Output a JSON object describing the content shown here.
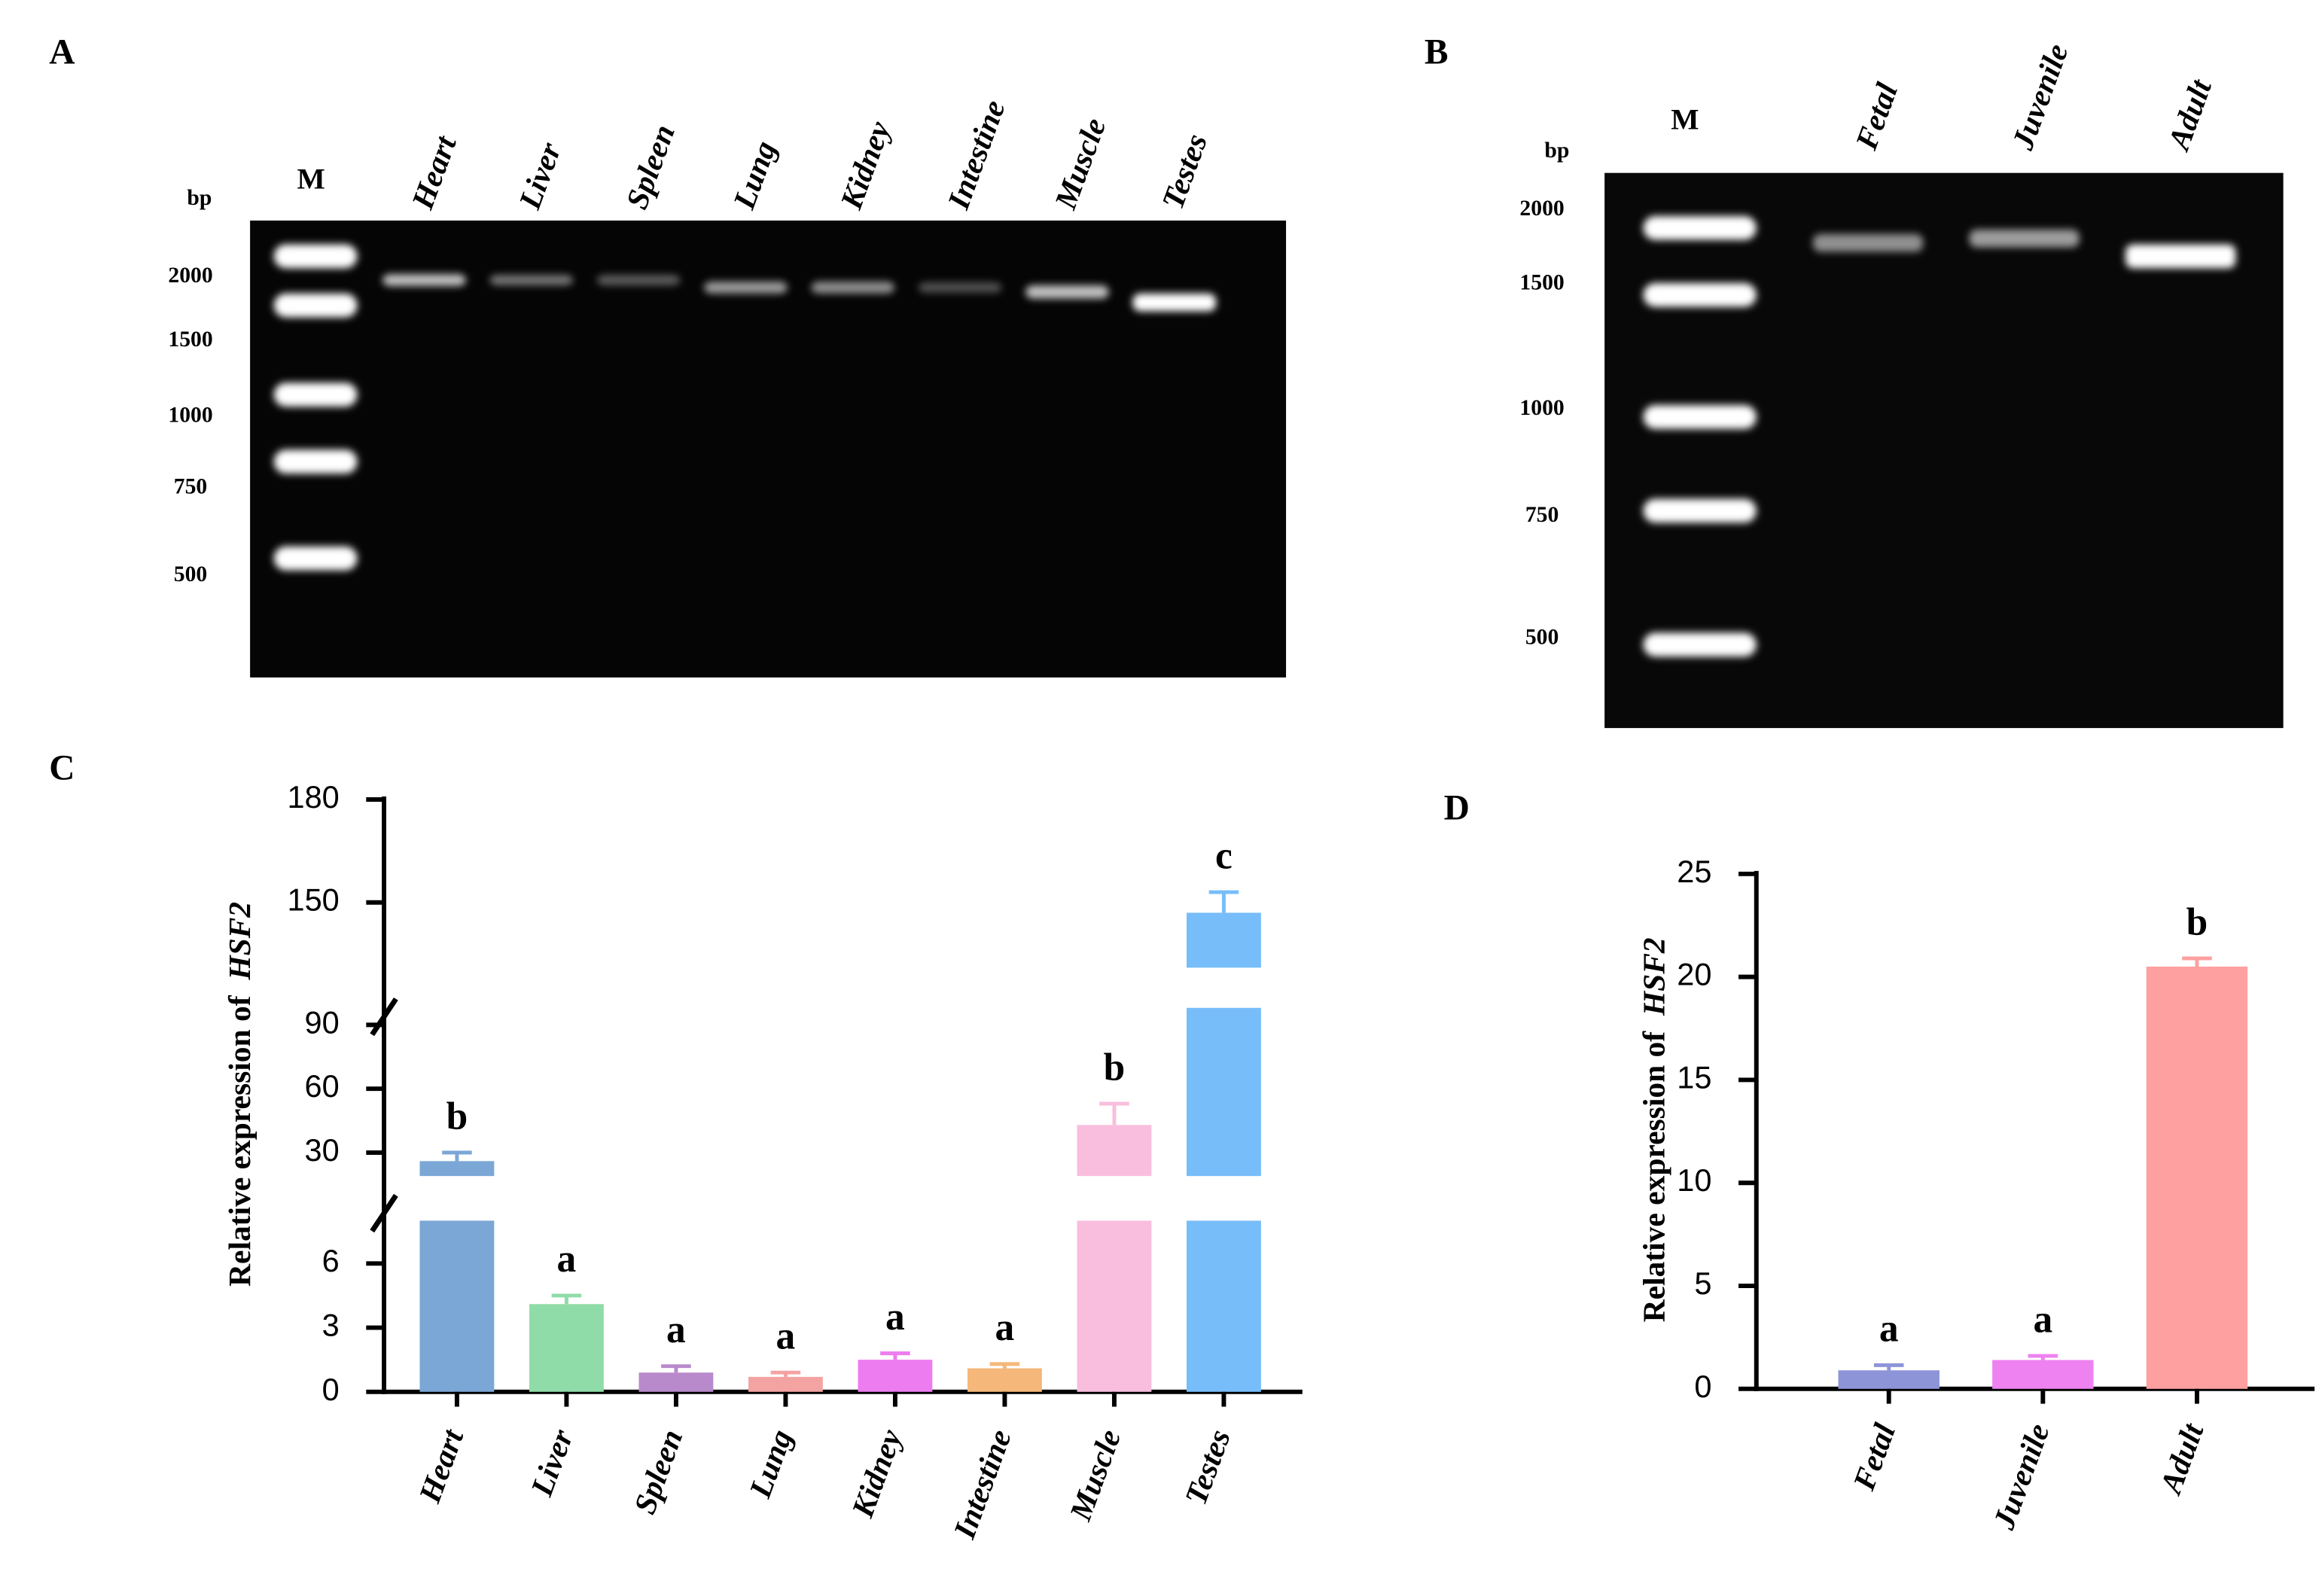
{
  "panels": {
    "a": "A",
    "b": "B",
    "c": "C",
    "d": "D"
  },
  "gels": [
    {
      "marker": "M",
      "unit": "bp",
      "marker_sizes": [
        2000,
        1500,
        1000,
        750,
        500
      ],
      "lanes": [
        "Heart",
        "Liver",
        "Spleen",
        "Lung",
        "Kidney",
        "Intestine",
        "Muscle",
        "Testes"
      ]
    },
    {
      "marker": "M",
      "unit": "bp",
      "marker_sizes": [
        2000,
        1500,
        1000,
        750,
        500
      ],
      "lanes": [
        "Fetal",
        "Juvenile",
        "Adult"
      ]
    }
  ],
  "chart_data": [
    {
      "type": "bar",
      "ylabel": "Relative expression of",
      "ylabel_gene": "HSF2",
      "categories": [
        "Heart",
        "Liver",
        "Spleen",
        "Lung",
        "Kidney",
        "Intestine",
        "Muscle",
        "Testes"
      ],
      "values": [
        26,
        4.1,
        0.9,
        0.7,
        1.5,
        1.1,
        43,
        147
      ],
      "errors": [
        4,
        0.4,
        0.3,
        0.2,
        0.3,
        0.2,
        10,
        6
      ],
      "colors": [
        "#7ba7d6",
        "#8fdca8",
        "#b88acb",
        "#f4a3a3",
        "#ec7cf0",
        "#f5b87a",
        "#f9bedd",
        "#77bdf9"
      ],
      "annotations": [
        "b",
        "a",
        "a",
        "a",
        "a",
        "a",
        "b",
        "c"
      ],
      "axis_segments": [
        {
          "ylim": [
            0,
            8
          ],
          "yticks": [
            0,
            3,
            6
          ]
        },
        {
          "ylim": [
            19,
            98
          ],
          "yticks": [
            30,
            60,
            90
          ]
        },
        {
          "ylim": [
            131,
            180
          ],
          "yticks": [
            150,
            180
          ]
        }
      ]
    },
    {
      "type": "bar",
      "ylabel": "Relative expression of",
      "ylabel_gene": "HSF2",
      "categories": [
        "Fetal",
        "Juvenile",
        "Adult"
      ],
      "values": [
        0.9,
        1.4,
        20.5
      ],
      "errors": [
        0.25,
        0.2,
        0.4
      ],
      "colors": [
        "#8e94d8",
        "#ee82f0",
        "#ffa0a0"
      ],
      "annotations": [
        "a",
        "a",
        "b"
      ],
      "ylim": [
        0,
        25
      ],
      "yticks": [
        0,
        5,
        10,
        15,
        20,
        25
      ]
    }
  ]
}
